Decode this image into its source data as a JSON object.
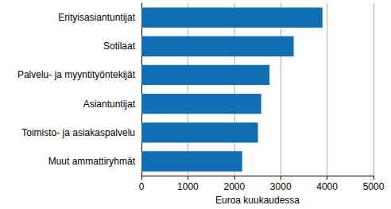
{
  "chart_data": {
    "type": "bar",
    "orientation": "horizontal",
    "x_label": "Euroa kuukaudessa",
    "categories": [
      "Erityisasiantuntijat",
      "Sotilaat",
      "Palvelu- ja myyntityöntekijät",
      "Asiantuntijat",
      "Toimisto- ja asiakaspalvelu",
      "Muut ammattiryhmät"
    ],
    "values": [
      3900,
      3280,
      2760,
      2580,
      2510,
      2170
    ],
    "color": "#0f6eb4",
    "xlim": [
      0,
      5000
    ],
    "xticks": [
      0,
      1000,
      2000,
      3000,
      4000,
      5000
    ],
    "grid": true
  }
}
